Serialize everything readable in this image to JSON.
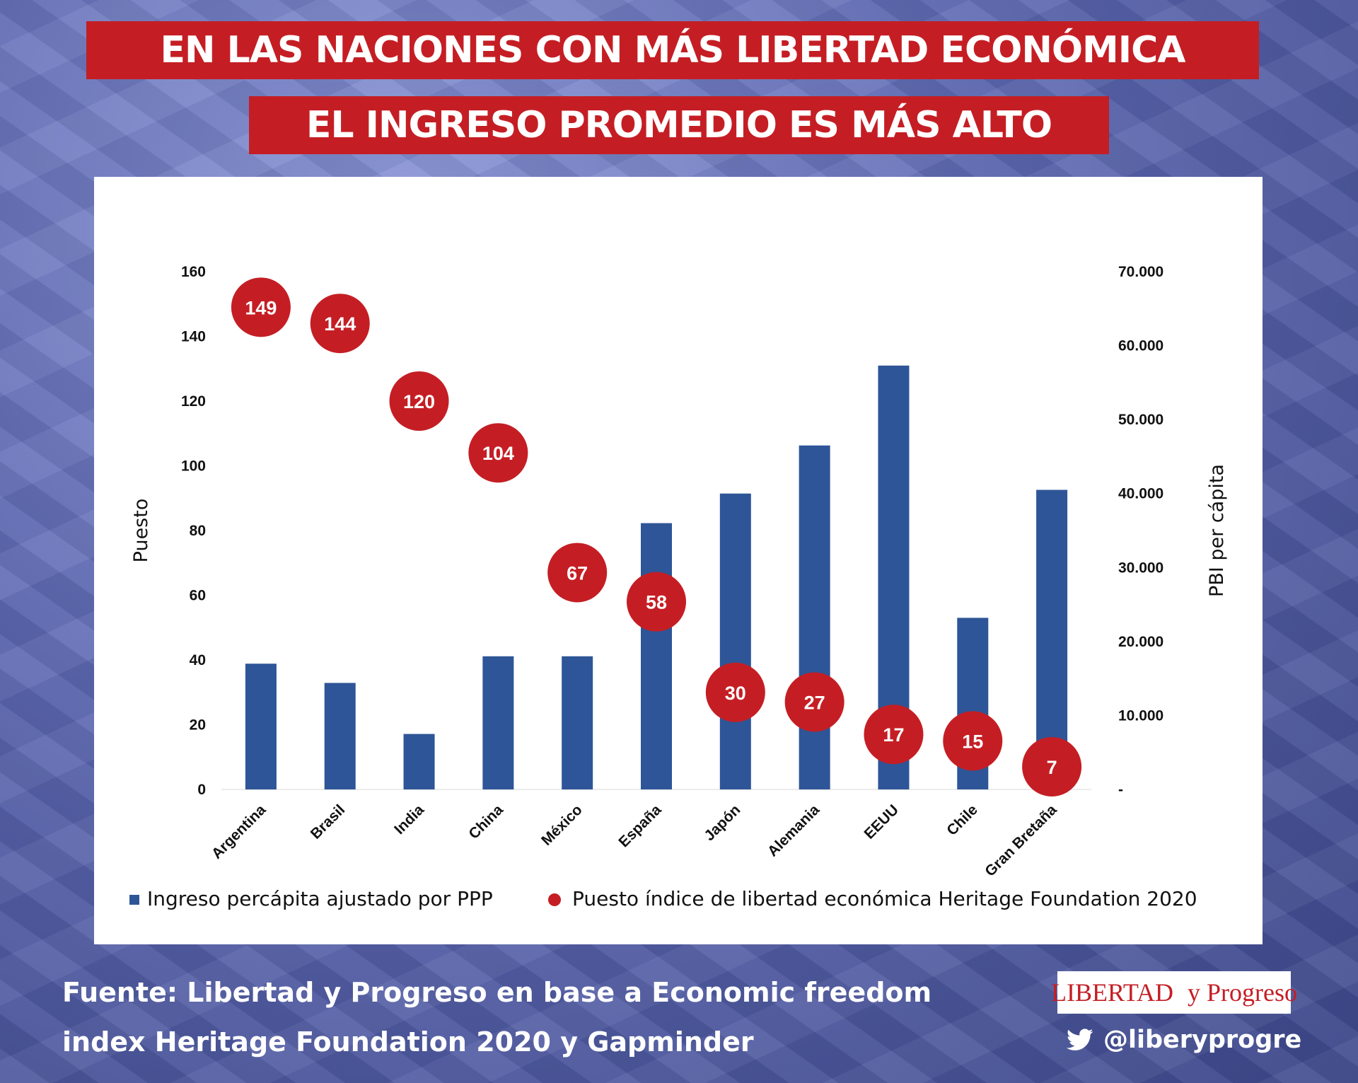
{
  "title": {
    "line1": "EN LAS NACIONES CON MÁS LIBERTAD ECONÓMICA",
    "line2": "EL INGRESO PROMEDIO ES MÁS ALTO"
  },
  "chart_data": {
    "type": "bar",
    "categories": [
      "Argentina",
      "Brasil",
      "India",
      "China",
      "México",
      "España",
      "Japón",
      "Alemania",
      "EEUU",
      "Chile",
      "Gran Bretaña"
    ],
    "series": [
      {
        "name": "Ingreso percápita ajustado por PPP",
        "type": "bar",
        "axis": "right",
        "color": "#2e5597",
        "values": [
          17000,
          14400,
          7500,
          18000,
          18000,
          36000,
          40000,
          46500,
          57300,
          23200,
          40500
        ]
      },
      {
        "name": "Puesto índice de libertad económica Heritage Foundation 2020",
        "type": "scatter",
        "axis": "left",
        "color": "#c41e24",
        "values": [
          149,
          144,
          120,
          104,
          67,
          58,
          30,
          27,
          17,
          15,
          7
        ]
      }
    ],
    "y_left": {
      "label": "Puesto",
      "ylim": [
        0,
        160
      ],
      "ticks": [
        0,
        20,
        40,
        60,
        80,
        100,
        120,
        140,
        160
      ],
      "tick_labels": [
        "0",
        "20",
        "40",
        "60",
        "80",
        "100",
        "120",
        "140",
        "160"
      ]
    },
    "y_right": {
      "label": "PBI per cápita",
      "ylim": [
        0,
        70000
      ],
      "ticks": [
        0,
        10000,
        20000,
        30000,
        40000,
        50000,
        60000,
        70000
      ],
      "tick_labels": [
        "-",
        "10.000",
        "20.000",
        "30.000",
        "40.000",
        "50.000",
        "60.000",
        "70.000"
      ]
    },
    "legend_position": "bottom",
    "grid": false
  },
  "footer": {
    "source_line1": "Fuente: Libertad y Progreso en base a Economic freedom",
    "source_line2": "index Heritage Foundation 2020 y Gapminder",
    "logo_left": "LIBERTAD",
    "logo_right": "y Progreso",
    "twitter_icon": "twitter-bird-icon",
    "twitter_handle": "@liberyprogre"
  }
}
